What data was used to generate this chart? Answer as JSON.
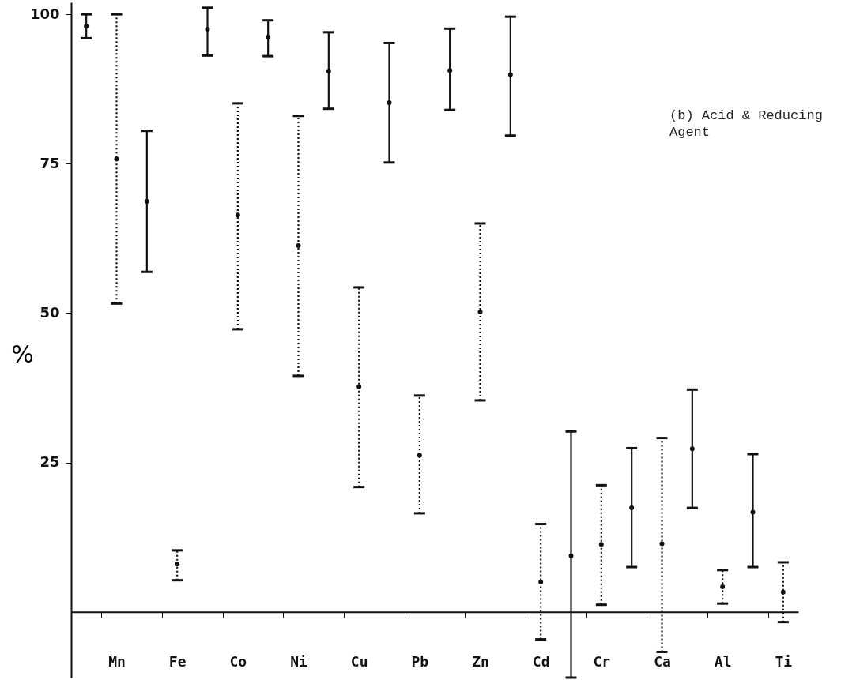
{
  "chart_data": {
    "type": "scatter",
    "ylabel": "%",
    "annotations": [
      "(b) Acid & Reducing Agent"
    ],
    "categories": [
      null,
      "Mn",
      null,
      "Fe",
      null,
      "Co",
      null,
      "Ni",
      null,
      "Cu",
      null,
      "Pb",
      null,
      "Zn",
      null,
      "Cd",
      null,
      "Cr",
      null,
      "Ca",
      null,
      "Al",
      null,
      "Ti"
    ],
    "series": [
      {
        "color": "#111111",
        "line_style": "solid",
        "values": [
          98,
          null,
          68.7,
          null,
          97.5,
          null,
          96.2,
          null,
          90.5,
          null,
          85.2,
          null,
          90.6,
          null,
          89.9,
          null,
          9.4,
          null,
          17.4,
          null,
          27.3,
          null,
          16.7,
          null
        ],
        "errors": [
          [
            96,
            100
          ],
          null,
          [
            56.9,
            80.5
          ],
          null,
          [
            93.1,
            101.1
          ],
          null,
          [
            93,
            99
          ],
          null,
          [
            84.2,
            97
          ],
          null,
          [
            75.2,
            95.2
          ],
          null,
          [
            84,
            97.6
          ],
          null,
          [
            79.7,
            99.6
          ],
          null,
          [
            -11,
            30.2
          ],
          null,
          [
            7.5,
            27.4
          ],
          null,
          [
            17.4,
            37.2
          ],
          null,
          [
            7.5,
            26.4
          ],
          null
        ]
      },
      {
        "color": "#111111",
        "line_style": "dotted",
        "values": [
          null,
          75.8,
          null,
          8,
          null,
          66.4,
          null,
          61.3,
          null,
          37.7,
          null,
          26.2,
          null,
          50.2,
          null,
          5,
          null,
          11.3,
          null,
          11.4,
          null,
          4.2,
          null,
          3.3
        ],
        "errors": [
          null,
          [
            51.6,
            100
          ],
          null,
          [
            5.3,
            10.3
          ],
          null,
          [
            47.3,
            85.1
          ],
          null,
          [
            39.5,
            83
          ],
          null,
          [
            20.9,
            54.3
          ],
          null,
          [
            16.5,
            36.2
          ],
          null,
          [
            35.4,
            65
          ],
          null,
          [
            -4.6,
            14.7
          ],
          null,
          [
            1.2,
            21.2
          ],
          null,
          [
            -6.7,
            29.1
          ],
          null,
          [
            1.4,
            7
          ],
          null,
          [
            -1.7,
            8.3
          ]
        ]
      }
    ],
    "ylim": [
      -11,
      102
    ],
    "yticks": [
      25,
      50,
      75,
      100
    ],
    "grid": false,
    "marker": "circle"
  }
}
